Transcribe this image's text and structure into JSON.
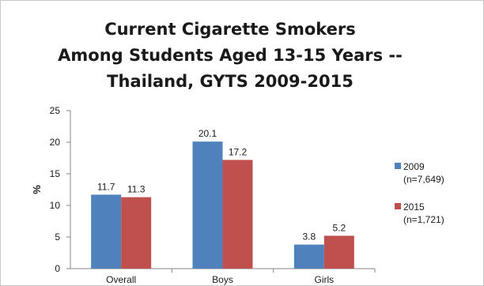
{
  "chart_data": {
    "type": "bar",
    "title_lines": [
      "Current Cigarette Smokers",
      "Among Students Aged 13-15 Years --",
      "Thailand, GYTS 2009-2015"
    ],
    "ylabel": "%",
    "xlabel": "",
    "ylim": [
      0,
      25
    ],
    "yticks": [
      0,
      5,
      10,
      15,
      20,
      25
    ],
    "categories": [
      "Overall",
      "Boys",
      "Girls"
    ],
    "series": [
      {
        "name": "2009",
        "note": "(n=7,649)",
        "color": "#4f81bd",
        "values": [
          11.7,
          20.1,
          3.8
        ],
        "labels": [
          "11.7",
          "20.1",
          "3.8"
        ]
      },
      {
        "name": "2015",
        "note": "(n=1,721)",
        "color": "#c0504d",
        "values": [
          11.3,
          17.2,
          5.2
        ],
        "labels": [
          "11.3",
          "17.2",
          "5.2"
        ]
      }
    ],
    "grid": false,
    "legend_position": "right"
  }
}
